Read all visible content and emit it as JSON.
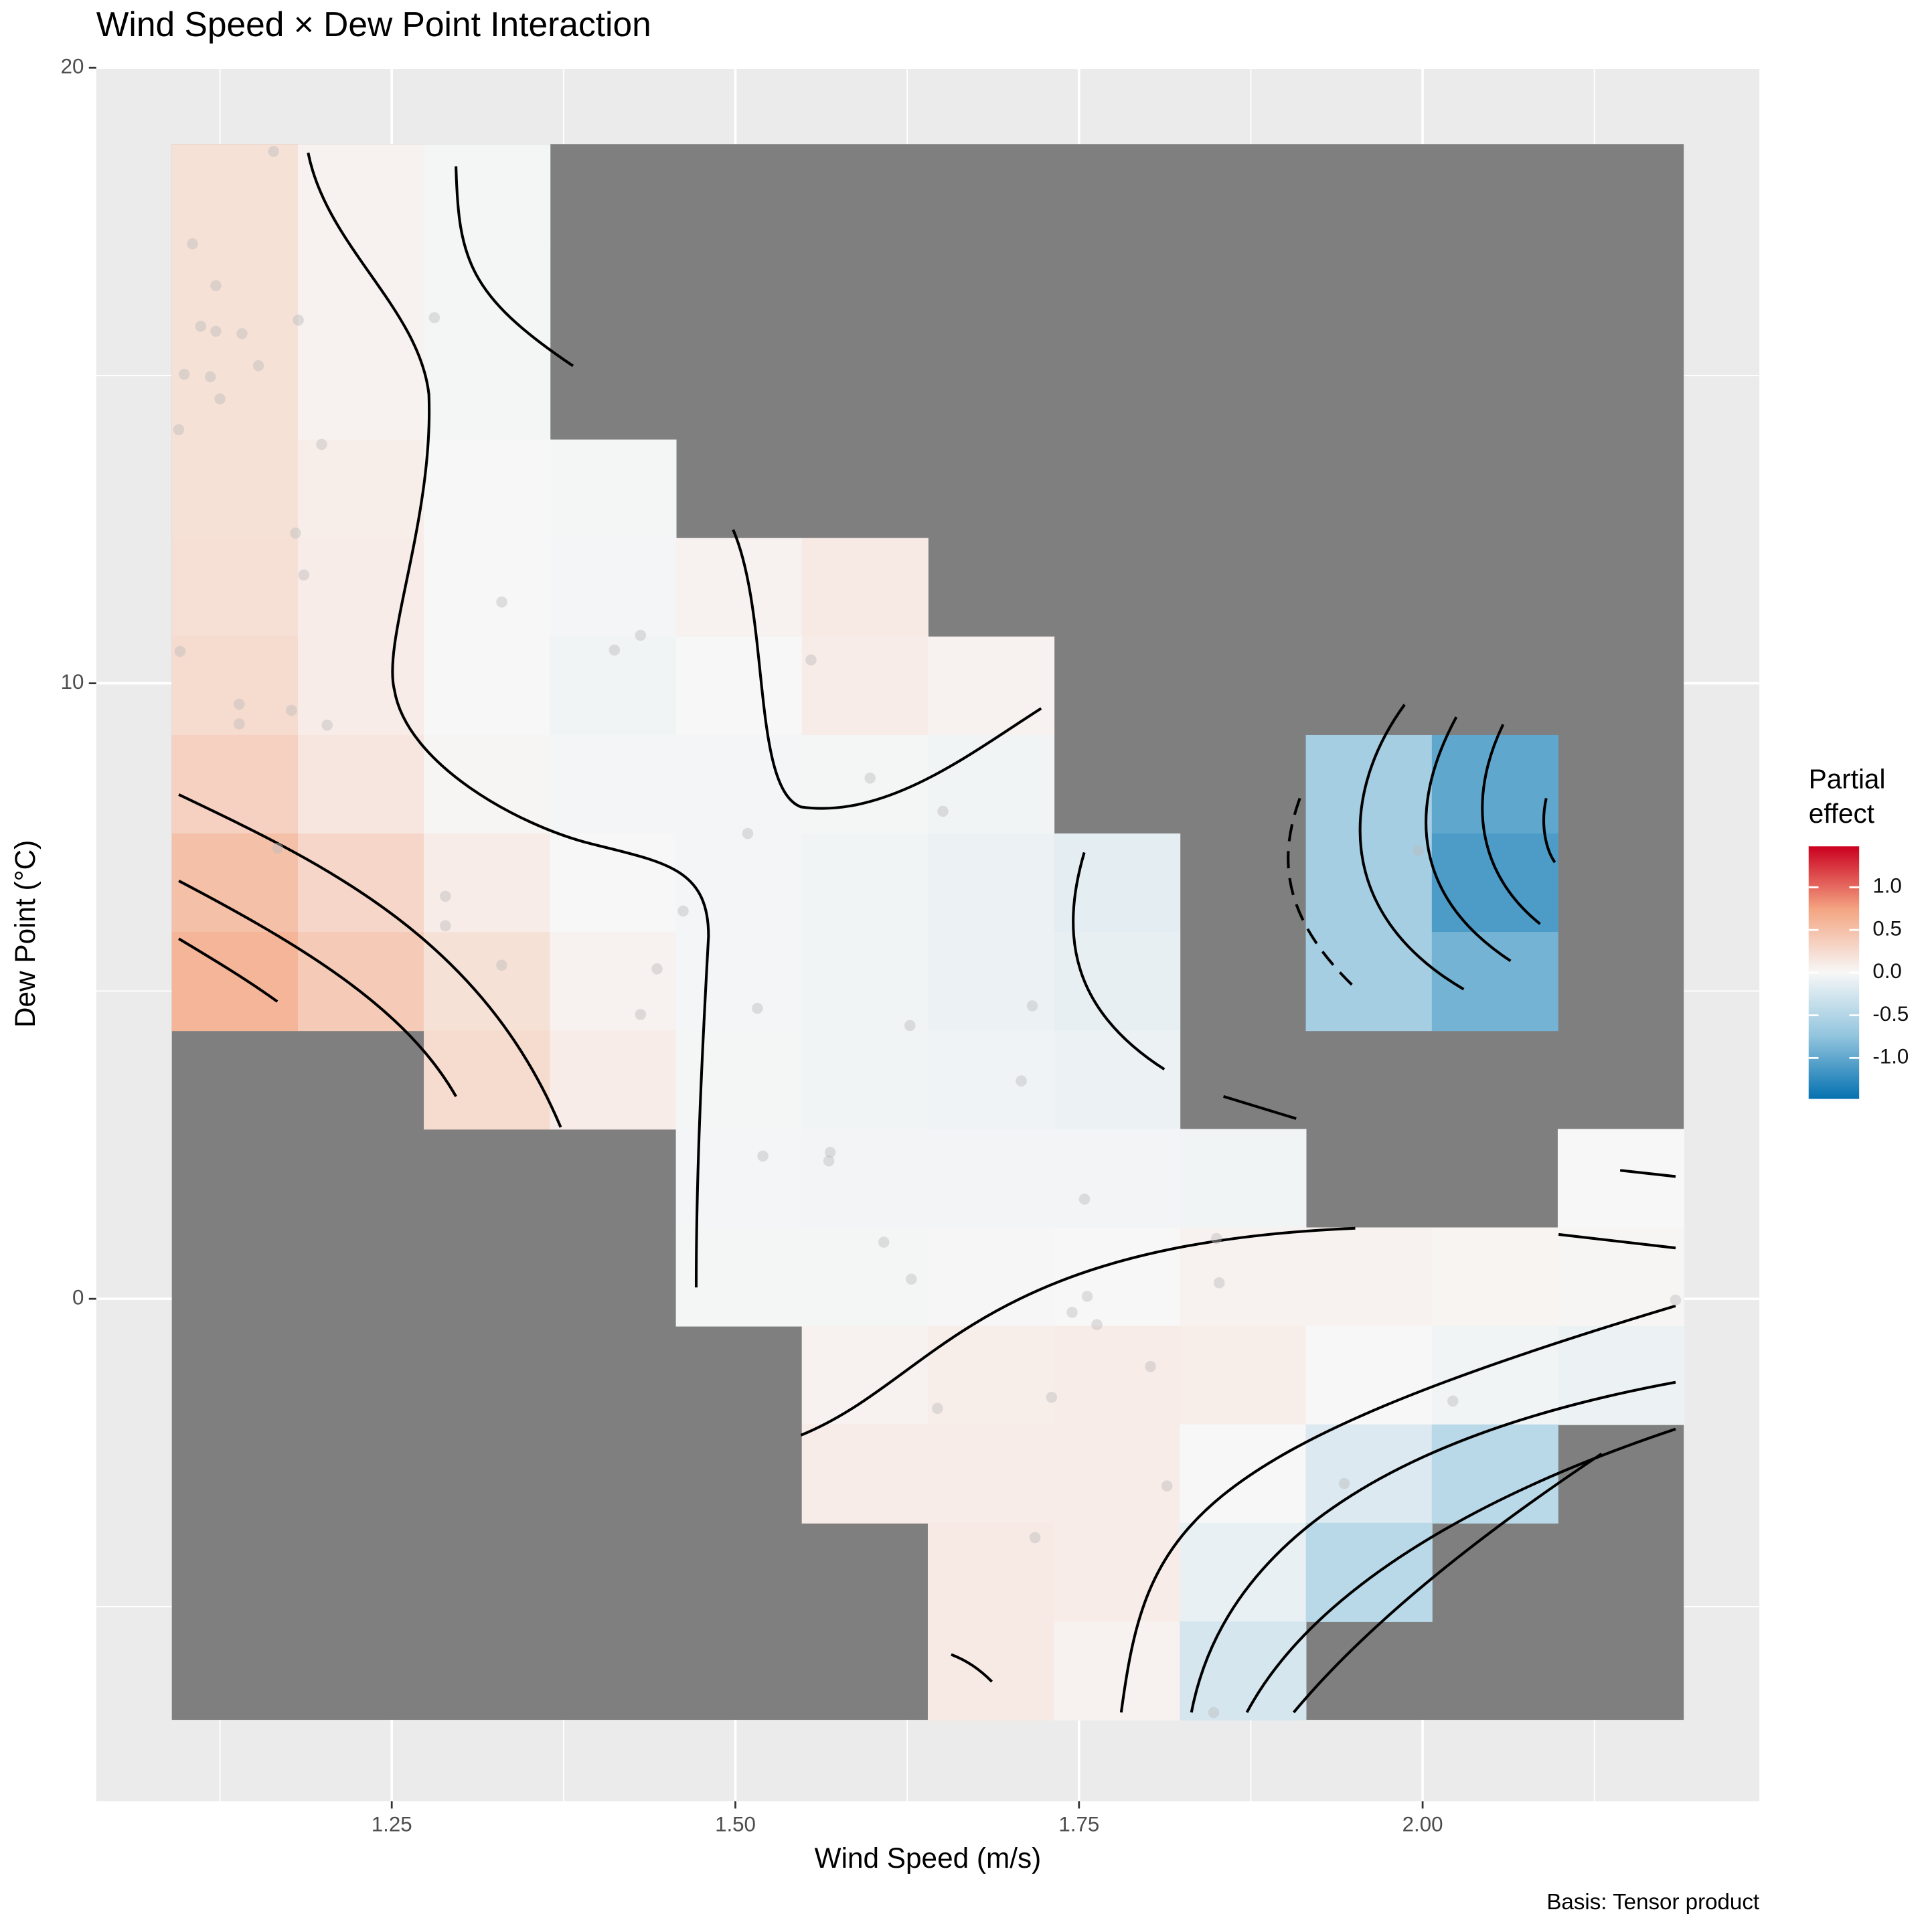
{
  "chart_data": {
    "type": "heatmap",
    "title": "Wind Speed × Dew Point Interaction",
    "x_label": "Wind Speed (m/s)",
    "y_label": "Dew Point (°C)",
    "caption": "Basis: Tensor product",
    "legend_title_lines": [
      "Partial",
      "effect"
    ],
    "xlim": [
      1.035,
      2.245
    ],
    "ylim": [
      -8.16,
      20
    ],
    "xticks": [
      1.25,
      {
        "value": 1.5,
        "label": "1.50"
      },
      1.75,
      {
        "value": 2,
        "label": "2.00"
      }
    ],
    "yticks": [
      0,
      10,
      20
    ],
    "x_minor_ticks": [
      1.125,
      1.375,
      1.625,
      1.875,
      2.125
    ],
    "y_minor_ticks": [
      -5,
      5,
      15
    ],
    "grid": true,
    "na_color": "#7f7f7f",
    "colors": [
      "#0571b0",
      "#92c5de",
      "#f7f7f7",
      "#f4a582",
      "#ca0020"
    ],
    "zlim": [
      -1.48,
      1.48
    ],
    "zticks": [
      {
        "value": 1,
        "label": "1.0"
      },
      0.5,
      {
        "value": 0,
        "label": "0.0"
      },
      -0.5,
      {
        "value": -1,
        "label": "-1.0"
      }
    ],
    "xbins": [
      1.09,
      1.1817,
      1.2733,
      1.365,
      1.4567,
      1.5483,
      1.64,
      1.7317,
      1.8233,
      1.915,
      2.0067,
      2.0983,
      2.19
    ],
    "ybins": [
      18.76,
      17.16,
      15.56,
      13.96,
      12.36,
      10.76,
      9.16,
      7.56,
      5.96,
      4.36,
      2.76,
      1.16,
      -0.44,
      -2.04,
      -3.64,
      -5.24,
      -6.84
    ],
    "z": [
      [
        0.2,
        0.05,
        -0.02,
        null,
        null,
        null,
        null,
        null,
        null,
        null,
        null,
        null
      ],
      [
        0.2,
        0.05,
        -0.02,
        null,
        null,
        null,
        null,
        null,
        null,
        null,
        null,
        null
      ],
      [
        0.2,
        0.05,
        -0.02,
        null,
        null,
        null,
        null,
        null,
        null,
        null,
        null,
        null
      ],
      [
        0.2,
        0.08,
        0.0,
        -0.02,
        null,
        null,
        null,
        null,
        null,
        null,
        null,
        null
      ],
      [
        0.22,
        0.1,
        0.0,
        -0.03,
        0.05,
        0.12,
        null,
        null,
        null,
        null,
        null,
        null
      ],
      [
        0.25,
        0.1,
        0.0,
        -0.05,
        0.0,
        0.1,
        0.05,
        null,
        null,
        null,
        null,
        null
      ],
      [
        0.35,
        0.15,
        0.02,
        -0.03,
        -0.03,
        -0.02,
        -0.05,
        null,
        null,
        -0.6,
        -1.0,
        null
      ],
      [
        0.5,
        0.3,
        0.1,
        0.0,
        -0.03,
        -0.05,
        -0.08,
        -0.15,
        null,
        -0.6,
        -1.1,
        null
      ],
      [
        0.6,
        0.4,
        0.2,
        0.05,
        -0.03,
        -0.05,
        -0.08,
        -0.12,
        null,
        -0.6,
        -0.9,
        null
      ],
      [
        null,
        null,
        0.25,
        0.1,
        -0.02,
        -0.05,
        -0.06,
        -0.08,
        null,
        null,
        null,
        null
      ],
      [
        null,
        null,
        null,
        null,
        -0.03,
        -0.04,
        -0.04,
        -0.04,
        -0.05,
        null,
        null,
        0.0
      ],
      [
        null,
        null,
        null,
        null,
        -0.02,
        -0.02,
        -0.01,
        0.0,
        0.05,
        0.05,
        0.03,
        0.02
      ],
      [
        null,
        null,
        null,
        null,
        null,
        0.05,
        0.08,
        0.1,
        0.08,
        0.0,
        -0.05,
        -0.08
      ],
      [
        null,
        null,
        null,
        null,
        null,
        0.1,
        0.1,
        0.1,
        0.0,
        -0.2,
        -0.45,
        null
      ],
      [
        null,
        null,
        null,
        null,
        null,
        null,
        0.12,
        0.1,
        -0.1,
        -0.45,
        null,
        null
      ],
      [
        null,
        null,
        null,
        null,
        null,
        null,
        0.12,
        0.05,
        -0.25,
        null,
        null,
        null
      ]
    ],
    "points_x": [
      1.164,
      1.105,
      1.122,
      1.111,
      1.122,
      1.141,
      1.182,
      1.099,
      1.118,
      1.125,
      1.153,
      1.095,
      1.199,
      1.18,
      1.186,
      1.096,
      1.139,
      1.139,
      1.177,
      1.203,
      1.167,
      1.281,
      1.33,
      1.412,
      1.431,
      1.289,
      1.289,
      1.33,
      1.462,
      1.443,
      1.431,
      1.555,
      1.598,
      1.509,
      1.651,
      1.516,
      1.627,
      1.716,
      1.708,
      1.52,
      1.569,
      1.568,
      1.754,
      1.608,
      1.628,
      1.756,
      1.745,
      1.763,
      1.802,
      1.73,
      1.647,
      1.814,
      1.718,
      1.85,
      1.852,
      2.022,
      1.943,
      1.848,
      2.184,
      1.997
    ],
    "points_y": [
      18.64,
      17.14,
      16.46,
      15.8,
      15.72,
      15.68,
      15.9,
      15.02,
      14.98,
      14.62,
      15.16,
      14.12,
      13.88,
      12.44,
      11.76,
      10.52,
      9.66,
      9.34,
      9.56,
      9.32,
      7.32,
      15.94,
      11.32,
      10.54,
      10.78,
      6.54,
      6.06,
      5.42,
      6.3,
      5.36,
      4.62,
      10.38,
      8.46,
      7.56,
      7.92,
      4.72,
      4.44,
      4.76,
      3.54,
      2.32,
      2.38,
      2.24,
      1.62,
      0.92,
      0.32,
      0.04,
      -0.22,
      -0.42,
      -1.1,
      -1.6,
      -1.78,
      -3.04,
      -3.88,
      0.98,
      0.26,
      -1.66,
      -3.0,
      -6.72,
      -0.02,
      7.28
    ]
  }
}
